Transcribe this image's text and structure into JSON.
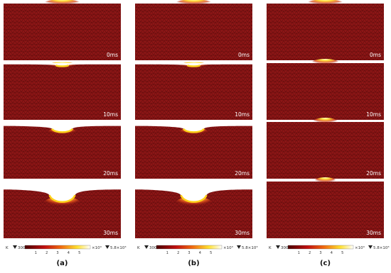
{
  "figure": {
    "columns": [
      {
        "caption": "(a)",
        "panels": [
          {
            "time": "0ms"
          },
          {
            "time": "10ms"
          },
          {
            "time": "20ms"
          },
          {
            "time": "30ms"
          }
        ],
        "colorbar": {
          "unit": "K",
          "min": "300",
          "ticks": [
            "1",
            "2",
            "3",
            "4",
            "5"
          ],
          "scale": "×10³",
          "max": "5.8×10³"
        }
      },
      {
        "caption": "(b)",
        "panels": [
          {
            "time": "0ms"
          },
          {
            "time": "10ms"
          },
          {
            "time": "20ms"
          },
          {
            "time": "30ms"
          }
        ],
        "colorbar": {
          "unit": "K",
          "min": "300",
          "ticks": [
            "1",
            "2",
            "3",
            "4",
            "5"
          ],
          "scale": "×10³",
          "max": "5.8×10³"
        }
      },
      {
        "caption": "(c)",
        "panels": [
          {
            "time": "0ms"
          },
          {
            "time": "10ms"
          },
          {
            "time": "20ms"
          },
          {
            "time": "30ms"
          }
        ],
        "colorbar": {
          "unit": "K",
          "min": "300",
          "ticks": [
            "1",
            "2",
            "3",
            "4",
            "5"
          ],
          "scale": "×10³",
          "max": "5.8×10³"
        }
      }
    ]
  }
}
